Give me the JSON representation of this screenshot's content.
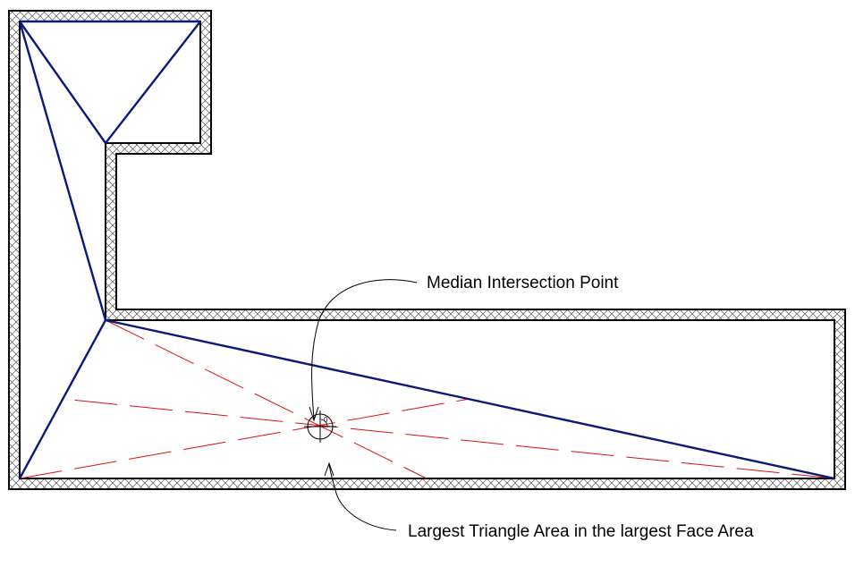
{
  "annotations": {
    "median_point_label": "Median Intersection Point",
    "triangle_area_label": "Largest Triangle Area in the largest Face Area"
  },
  "marker": {
    "angle_label": "0"
  },
  "colors": {
    "wall_outline": "#000000",
    "wall_hatch": "#555555",
    "triangulation_edges": "#0a1a7a",
    "median_lines": "#dd1111",
    "background": "#ffffff"
  }
}
